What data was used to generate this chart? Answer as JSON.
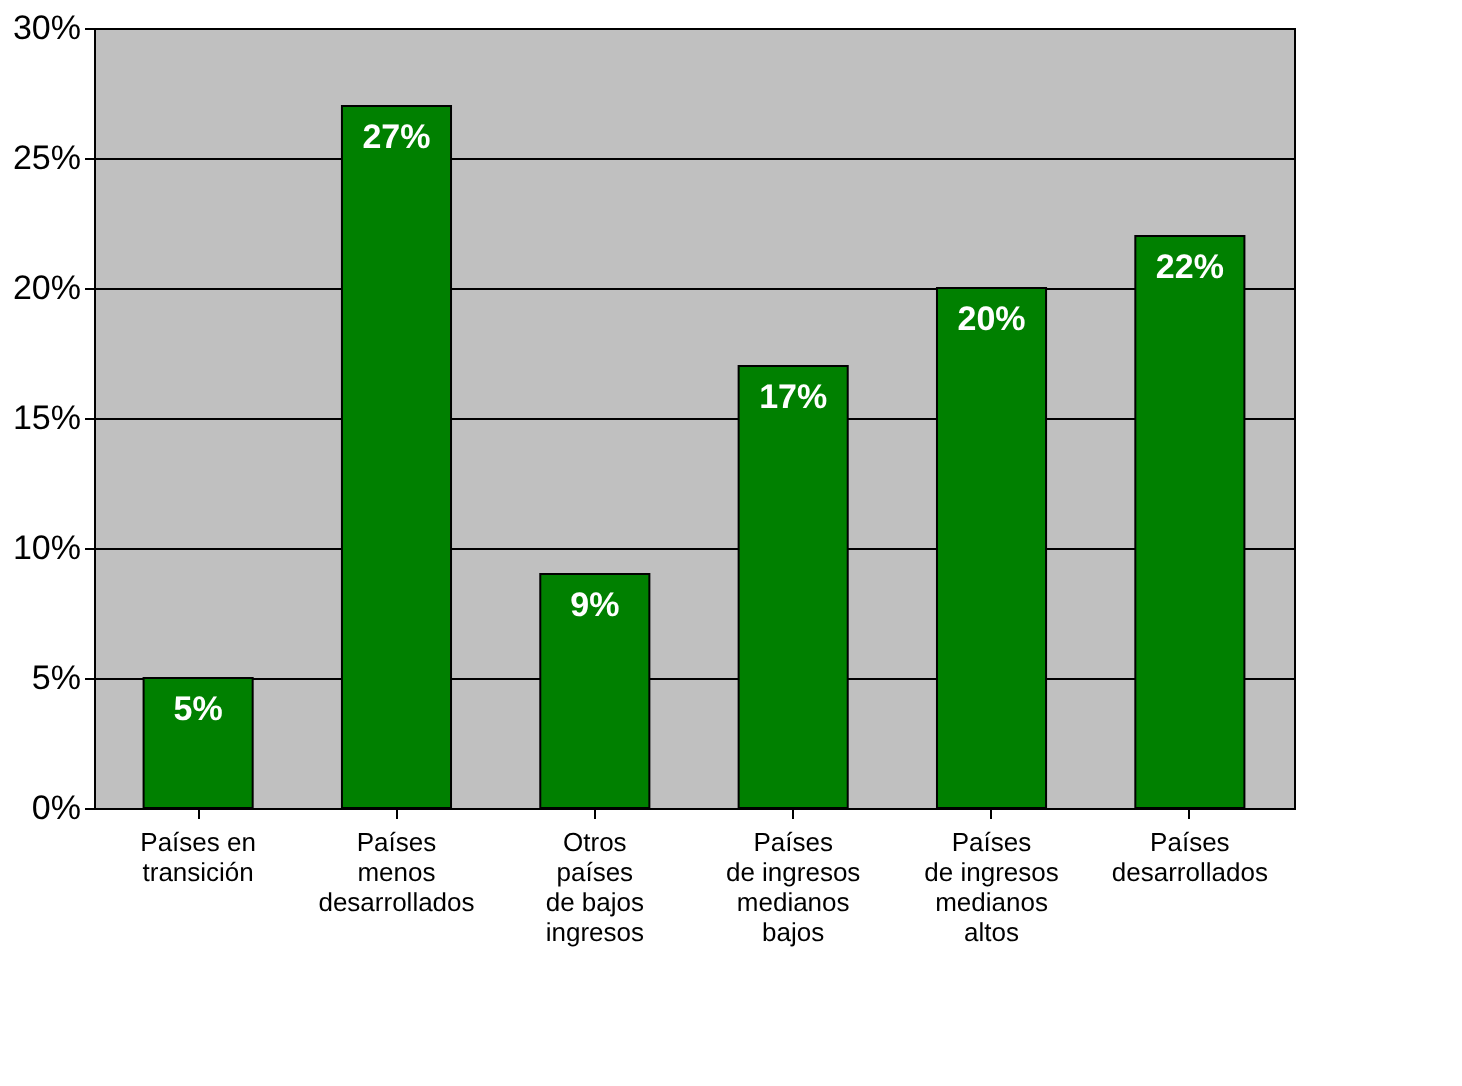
{
  "chart_data": {
    "type": "bar",
    "categories": [
      "Países en\ntransición",
      "Países\nmenos\ndesarrollados",
      "Otros\npaíses\nde bajos\ningresos",
      "Países\nde ingresos\nmedianos\nbajos",
      "Países\nde ingresos\nmedianos\naltos",
      "Países\ndesarrollados"
    ],
    "values": [
      5,
      27,
      9,
      17,
      20,
      22
    ],
    "value_labels": [
      "5%",
      "27%",
      "9%",
      "17%",
      "20%",
      "22%"
    ],
    "color": "#008000",
    "ylim": [
      0,
      30
    ],
    "yticks": [
      {
        "value": 0,
        "label": "0%"
      },
      {
        "value": 5,
        "label": "5%"
      },
      {
        "value": 10,
        "label": "10%"
      },
      {
        "value": 15,
        "label": "15%"
      },
      {
        "value": 20,
        "label": "20%"
      },
      {
        "value": 25,
        "label": "25%"
      },
      {
        "value": 30,
        "label": "30%"
      }
    ],
    "grid": "y"
  }
}
